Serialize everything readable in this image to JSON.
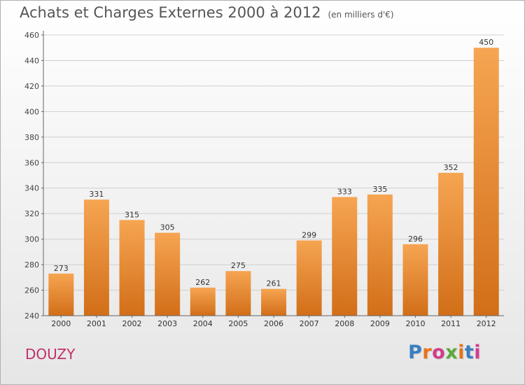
{
  "title": "Achats et Charges Externes 2000 à 2012",
  "subtitle": "(en milliers d'€)",
  "commune": "DOUZY",
  "logo": {
    "text": "Proxiti",
    "colors": [
      "#3a7fc1",
      "#e8731a",
      "#d23c8e",
      "#5aa83a",
      "#e8731a",
      "#3a7fc1",
      "#d23c8e"
    ]
  },
  "chart_data": {
    "type": "bar",
    "title": "Achats et Charges Externes 2000 à 2012",
    "subtitle": "(en milliers d'€)",
    "categories": [
      "2000",
      "2001",
      "2002",
      "2003",
      "2004",
      "2005",
      "2006",
      "2007",
      "2008",
      "2009",
      "2010",
      "2011",
      "2012"
    ],
    "values": [
      273,
      331,
      315,
      305,
      262,
      275,
      261,
      299,
      333,
      335,
      296,
      352,
      450
    ],
    "xlabel": "",
    "ylabel": "",
    "ylim": [
      240,
      460
    ],
    "yticks": [
      240,
      260,
      280,
      300,
      320,
      340,
      360,
      380,
      400,
      420,
      440,
      460
    ],
    "grid": true,
    "bar_color": "#f0902e"
  }
}
